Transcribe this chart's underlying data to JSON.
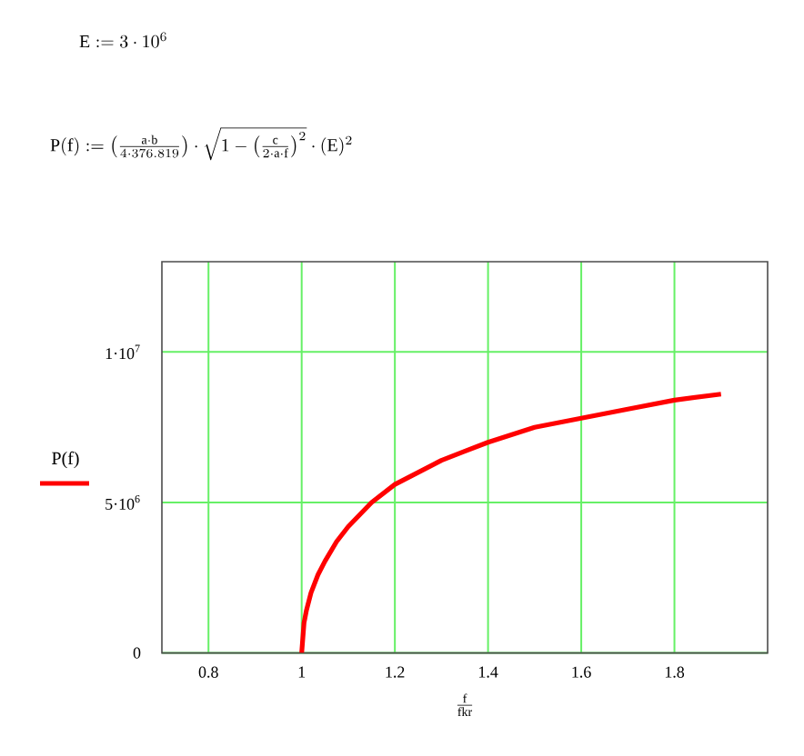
{
  "chart_data": {
    "type": "line",
    "annotations": [
      "\\mathrm{E} :=3\\cdot 10^{6}",
      "\\mathrm{P(f)} :=\\left(\\frac{\\mathrm{a}\\cdot \\mathrm{b}}{4\\cdot 376.819}\\right)\\cdot\\sqrt{1-\\left(\\frac{\\mathrm{c}}{2\\cdot \\mathrm{a}\\cdot \\mathrm{f}}\\right)^{2}}\\cdot(\\mathrm{E})^{2}"
    ],
    "xlabel": "\\frac{\\mathrm{f}}{\\mathrm{fkr}}",
    "x": [
      1.0,
      1.005,
      1.01,
      1.02,
      1.035,
      1.05,
      1.075,
      1.1,
      1.15,
      1.2,
      1.25,
      1.3,
      1.4,
      1.5,
      1.6,
      1.7,
      1.8,
      1.9
    ],
    "series": [
      {
        "name": "P(f)",
        "color": "#ff0000",
        "values": [
          0,
          1000000.0,
          1400000.0,
          2000000.0,
          2600000.0,
          3050000.0,
          3700000.0,
          4200000.0,
          5000000.0,
          5600000.0,
          6000000.0,
          6400000.0,
          7000000.0,
          7500000.0,
          7800000.0,
          8100000.0,
          8400000.0,
          8600000.0
        ]
      }
    ],
    "xlim": [
      0.7,
      2.0
    ],
    "ylim": [
      0,
      13000000.0
    ],
    "xticks": [
      0.8,
      1,
      1.2,
      1.4,
      1.6,
      1.8
    ],
    "yticks": [
      0,
      {
        "value": 5000000,
        "label": "5·10$^{6}$"
      },
      {
        "value": 10000000,
        "label": "1·10$^{7}$"
      }
    ],
    "grid": true,
    "legend": "left",
    "marker": "none",
    "line_style": "solid"
  }
}
